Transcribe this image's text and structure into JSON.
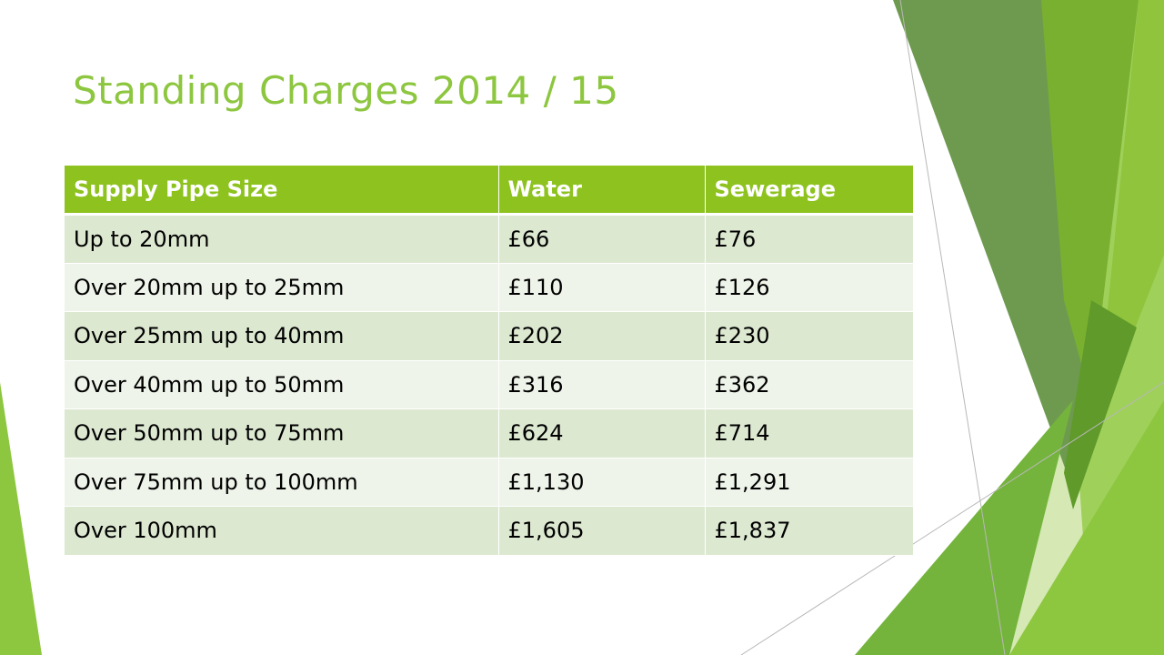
{
  "slide": {
    "title": "Standing Charges 2014 / 15"
  },
  "table": {
    "headers": [
      "Supply Pipe Size",
      "Water",
      "Sewerage"
    ],
    "rows": [
      [
        "Up to 20mm",
        "£66",
        "£76"
      ],
      [
        "Over 20mm up to 25mm",
        "£110",
        "£126"
      ],
      [
        "Over 25mm up to 40mm",
        "£202",
        "£230"
      ],
      [
        "Over 40mm up to 50mm",
        "£316",
        "£362"
      ],
      [
        "Over 50mm up to 75mm",
        "£624",
        "£714"
      ],
      [
        "Over 75mm up to 100mm",
        "£1,130",
        "£1,291"
      ],
      [
        "Over 100mm",
        "£1,605",
        "£1,837"
      ]
    ]
  },
  "theme": {
    "accent": "#8dc63f",
    "header_fill": "#8dc21f",
    "row_band_dark": "#dde8d1",
    "row_band_light": "#eef4e9"
  }
}
